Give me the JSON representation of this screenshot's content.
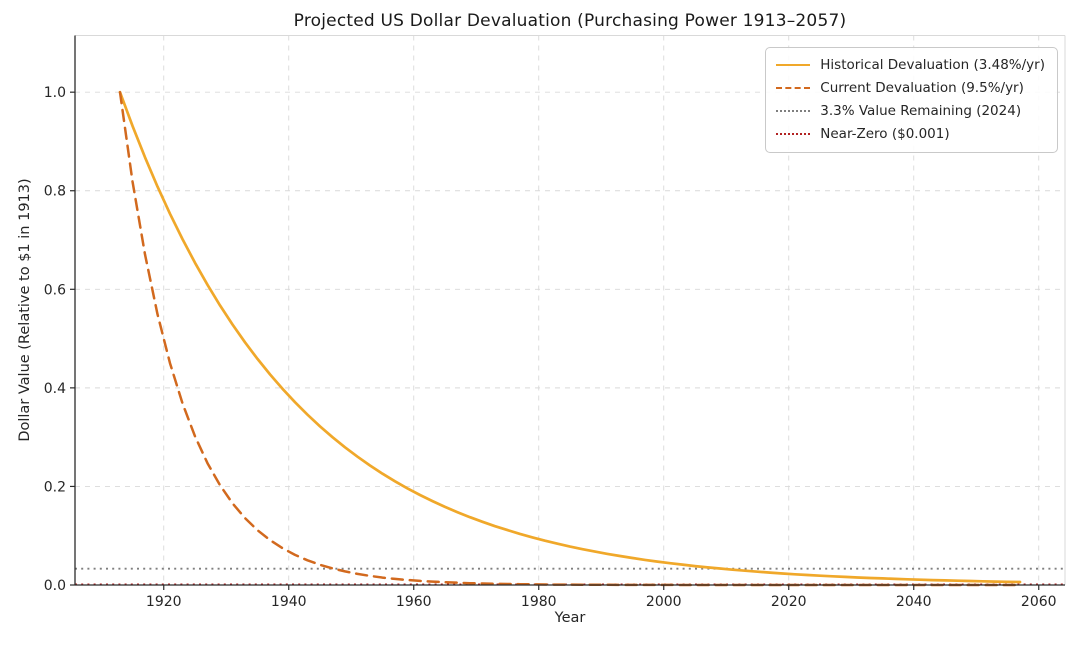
{
  "chart_data": {
    "type": "line",
    "title": "Projected US Dollar Devaluation (Purchasing Power 1913–2057)",
    "xlabel": "Year",
    "ylabel": "Dollar Value (Relative to $1 in 1913)",
    "xlim": [
      1905.8,
      2064.2
    ],
    "ylim": [
      0,
      1.115
    ],
    "x_ticks": [
      1920,
      1940,
      1960,
      1980,
      2000,
      2020,
      2040,
      2060
    ],
    "y_ticks": [
      0,
      0.2,
      0.4,
      0.6,
      0.8,
      1.0
    ],
    "y_tick_labels": [
      "0.0",
      "0.2",
      "0.4",
      "0.6",
      "0.8",
      "1.0"
    ],
    "grid": true,
    "grid_color": "#d9d9d9",
    "legend_position": "upper right",
    "series": [
      {
        "name": "Historical Devaluation (3.48%/yr)",
        "type": "curve",
        "style": "solid",
        "color": "#F0A82A",
        "line_width": 2.7,
        "x": [
          1913,
          1915,
          1917,
          1919,
          1921,
          1923,
          1925,
          1927,
          1929,
          1931,
          1933,
          1935,
          1937,
          1939,
          1941,
          1943,
          1945,
          1947,
          1949,
          1951,
          1953,
          1955,
          1957,
          1959,
          1961,
          1963,
          1965,
          1967,
          1969,
          1971,
          1973,
          1975,
          1977,
          1979,
          1981,
          1983,
          1985,
          1987,
          1989,
          1991,
          1993,
          1995,
          1997,
          1999,
          2001,
          2003,
          2005,
          2007,
          2009,
          2011,
          2013,
          2015,
          2017,
          2019,
          2021,
          2023,
          2025,
          2027,
          2029,
          2031,
          2033,
          2035,
          2037,
          2039,
          2041,
          2043,
          2045,
          2047,
          2049,
          2051,
          2053,
          2055,
          2057
        ],
        "y": [
          1.0,
          0.9316,
          0.8679,
          0.8085,
          0.7533,
          0.7018,
          0.6538,
          0.6091,
          0.5674,
          0.5286,
          0.4924,
          0.4588,
          0.4274,
          0.3982,
          0.3709,
          0.3456,
          0.3219,
          0.2999,
          0.2794,
          0.2603,
          0.2425,
          0.2259,
          0.2105,
          0.1961,
          0.1827,
          0.1702,
          0.1585,
          0.1477,
          0.1376,
          0.1282,
          0.1194,
          0.1113,
          0.1036,
          0.0965,
          0.0899,
          0.0838,
          0.078,
          0.0727,
          0.0677,
          0.0631,
          0.0588,
          0.0548,
          0.051,
          0.0475,
          0.0443,
          0.0413,
          0.0384,
          0.0358,
          0.0334,
          0.0311,
          0.029,
          0.027,
          0.0251,
          0.0234,
          0.0218,
          0.0203,
          0.0189,
          0.0176,
          0.0164,
          0.0153,
          0.0143,
          0.0133,
          0.0124,
          0.0115,
          0.0107,
          0.01,
          0.0093,
          0.0087,
          0.0081,
          0.0075,
          0.007,
          0.0065,
          0.0061
        ]
      },
      {
        "name": "Current Devaluation (9.5%/yr)",
        "type": "curve",
        "style": "dashed",
        "color": "#D2691E",
        "line_width": 2.5,
        "x": [
          1913,
          1915,
          1917,
          1919,
          1921,
          1923,
          1925,
          1927,
          1929,
          1931,
          1933,
          1935,
          1937,
          1939,
          1941,
          1943,
          1945,
          1947,
          1949,
          1951,
          1953,
          1955,
          1957,
          1959,
          1961,
          1963,
          1965,
          1967,
          1969,
          1971,
          1973,
          1975,
          1977,
          1979,
          1981,
          1983,
          1985,
          1987,
          1989,
          1991,
          1993,
          1995,
          1997,
          1999,
          2001,
          2003,
          2005,
          2007,
          2009,
          2011,
          2013,
          2015,
          2017,
          2019,
          2021,
          2023,
          2025,
          2027,
          2029,
          2031,
          2033,
          2035,
          2037,
          2039,
          2041,
          2043,
          2045,
          2047,
          2049,
          2051,
          2053,
          2055,
          2057
        ],
        "y": [
          1.0,
          0.819,
          0.6708,
          0.5494,
          0.45,
          0.3685,
          0.3018,
          0.2472,
          0.2025,
          0.1658,
          0.1358,
          0.1112,
          0.0911,
          0.0746,
          0.0611,
          0.0501,
          0.041,
          0.0336,
          0.0275,
          0.0225,
          0.0184,
          0.0151,
          0.0124,
          0.0101,
          0.0083,
          0.0068,
          0.0056,
          0.0046,
          0.0037,
          0.0031,
          0.0025,
          0.0021,
          0.0017,
          0.0014,
          0.0011,
          0.0009,
          0.0008,
          0.0006,
          0.0005,
          0.0004,
          0.0003,
          0.0003,
          0.0002,
          0.0002,
          0.0002,
          0.0001,
          0.0001,
          0.0001,
          0.0001,
          0.0001,
          0.0001,
          0.0,
          0.0,
          0.0,
          0.0,
          0.0,
          0.0,
          0.0,
          0.0,
          0.0,
          0.0,
          0.0,
          0.0,
          0.0,
          0.0,
          0.0,
          0.0,
          0.0,
          0.0,
          0.0,
          0.0,
          0.0,
          0.0
        ]
      },
      {
        "name": "3.3% Value Remaining (2024)",
        "type": "hline",
        "style": "dotted",
        "color": "#7F7F7F",
        "line_width": 1.9,
        "y_value": 0.033
      },
      {
        "name": "Near-Zero ($0.001)",
        "type": "hline",
        "style": "dotted",
        "color": "#B22222",
        "line_width": 1.9,
        "y_value": 0.001
      }
    ]
  }
}
